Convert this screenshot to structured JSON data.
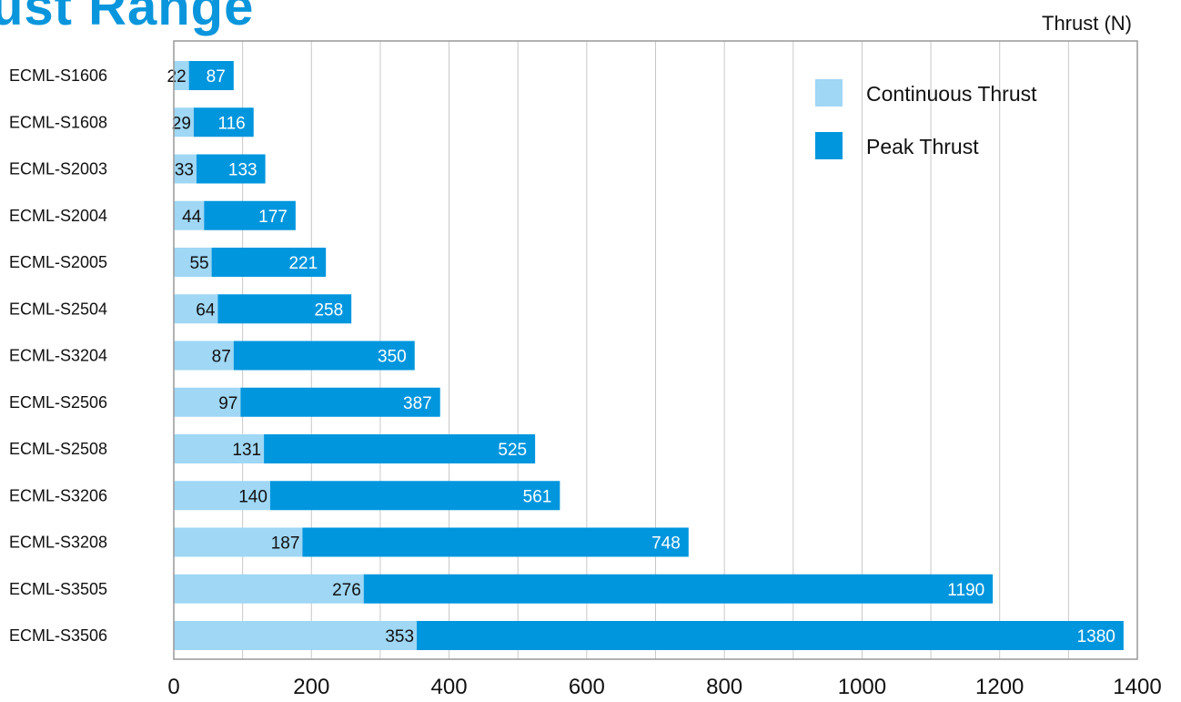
{
  "title": "ust Range",
  "unit_label": "Thrust (N)",
  "colors": {
    "continuous": "#9fd7f5",
    "peak": "#0096de",
    "grid": "#c8c8c8",
    "frame": "#999999"
  },
  "chart_data": {
    "type": "bar",
    "orientation": "horizontal",
    "stacking": "overlay",
    "title": "ust Range",
    "xlabel": "Thrust (N)",
    "ylabel": "",
    "xlim": [
      0,
      1400
    ],
    "xticks": [
      0,
      200,
      400,
      600,
      800,
      1000,
      1200,
      1400
    ],
    "grid": true,
    "legend_position": "top-right",
    "categories": [
      "ECML-S1606",
      "ECML-S1608",
      "ECML-S2003",
      "ECML-S2004",
      "ECML-S2005",
      "ECML-S2504",
      "ECML-S3204",
      "ECML-S2506",
      "ECML-S2508",
      "ECML-S3206",
      "ECML-S3208",
      "ECML-S3505",
      "ECML-S3506"
    ],
    "series": [
      {
        "name": "Continuous Thrust",
        "values": [
          22,
          29,
          33,
          44,
          55,
          64,
          87,
          97,
          131,
          140,
          187,
          276,
          353
        ]
      },
      {
        "name": "Peak Thrust",
        "values": [
          87,
          116,
          133,
          177,
          221,
          258,
          350,
          387,
          525,
          561,
          748,
          1190,
          1380
        ]
      }
    ]
  }
}
